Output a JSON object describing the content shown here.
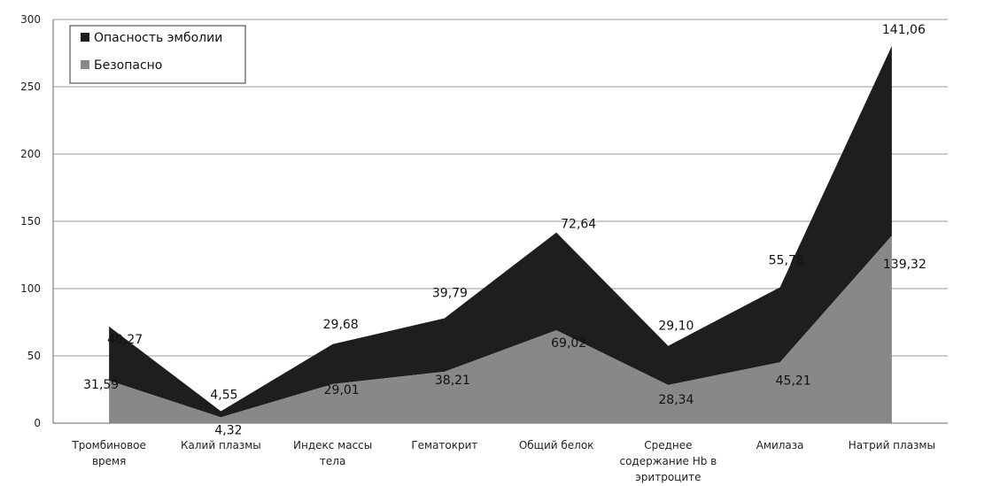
{
  "chart_data": {
    "type": "area",
    "stacked": true,
    "categories": [
      "Тромбиновое время",
      "Калий плазмы",
      "Индекс массы тела",
      "Гематокрит",
      "Общий белок",
      "Среднее содержание Hb в эритроците",
      "Амилаза",
      "Натрий плазмы"
    ],
    "series": [
      {
        "name": "Безопасно",
        "values": [
          31.59,
          4.32,
          29.01,
          38.21,
          69.02,
          28.34,
          45.21,
          139.32
        ],
        "labels": [
          "31,59",
          "4,32",
          "29,01",
          "38,21",
          "69,02",
          "28,34",
          "45,21",
          "139,32"
        ],
        "color": "#888888"
      },
      {
        "name": "Опасность эмболии",
        "values": [
          40.27,
          4.55,
          29.68,
          39.79,
          72.64,
          29.1,
          55.78,
          141.06
        ],
        "labels": [
          "40,27",
          "4,55",
          "29,68",
          "39,79",
          "72,64",
          "29,10",
          "55,78",
          "141,06"
        ],
        "color": "#1e1e1e"
      }
    ],
    "ylim": [
      0,
      300
    ],
    "yticks": [
      0,
      50,
      100,
      150,
      200,
      250,
      300
    ],
    "grid": true,
    "legend": "top-left",
    "legend_entries": [
      "Опасность эмболии",
      "Безопасно"
    ]
  }
}
